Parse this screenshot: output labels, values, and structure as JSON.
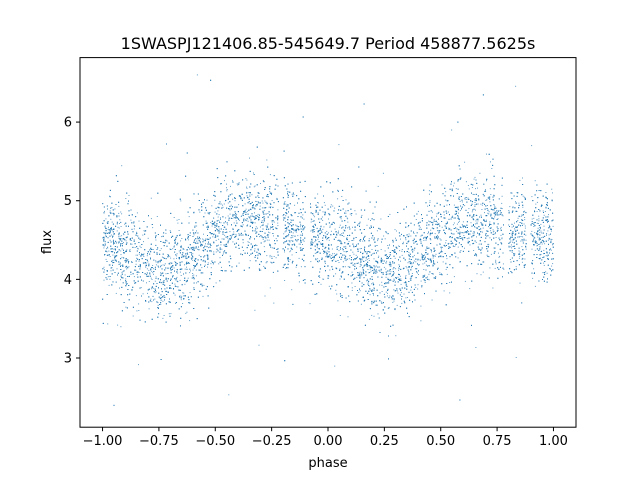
{
  "chart_data": {
    "type": "scatter",
    "title": "1SWASPJ121406.85-545649.7 Period 458877.5625s",
    "xlabel": "phase",
    "ylabel": "flux",
    "xlim": [
      -1.1,
      1.1
    ],
    "ylim": [
      2.12,
      6.82
    ],
    "xticks": [
      -1.0,
      -0.75,
      -0.5,
      -0.25,
      0.0,
      0.25,
      0.5,
      0.75,
      1.0
    ],
    "xtick_labels": [
      "−1.00",
      "−0.75",
      "−0.50",
      "−0.25",
      "0.00",
      "0.25",
      "0.50",
      "0.75",
      "1.00"
    ],
    "yticks": [
      3,
      4,
      5,
      6
    ],
    "ytick_labels": [
      "3",
      "4",
      "5",
      "6"
    ],
    "grid": false,
    "color": "#1f77b4",
    "series": [
      {
        "phase": [
          -1.0,
          -0.95,
          -0.9,
          -0.85,
          -0.8,
          -0.75,
          -0.7,
          -0.65,
          -0.6,
          -0.55,
          -0.5,
          -0.45,
          -0.4,
          -0.35,
          -0.3,
          -0.25,
          -0.2,
          -0.15,
          -0.1,
          -0.05,
          0.0,
          0.05,
          0.1,
          0.15,
          0.2,
          0.25,
          0.3,
          0.35,
          0.4,
          0.45,
          0.5,
          0.55,
          0.6,
          0.65,
          0.7,
          0.75,
          0.8,
          0.85,
          0.9,
          0.95,
          1.0
        ],
        "mean_flux": [
          4.5,
          4.45,
          4.35,
          4.25,
          4.15,
          4.1,
          4.12,
          4.2,
          4.3,
          4.42,
          4.55,
          4.65,
          4.72,
          4.75,
          4.72,
          4.65,
          4.6,
          4.58,
          4.55,
          4.52,
          4.5,
          4.45,
          4.35,
          4.25,
          4.15,
          4.1,
          4.12,
          4.2,
          4.3,
          4.42,
          4.55,
          4.65,
          4.72,
          4.75,
          4.72,
          4.65,
          4.6,
          4.58,
          4.55,
          4.52,
          4.5
        ],
        "scatter_std": 0.3,
        "phase_gaps": [
          [
            -0.22,
            -0.2
          ],
          [
            -0.1,
            -0.08
          ],
          [
            0.78,
            0.8
          ],
          [
            0.88,
            0.9
          ]
        ]
      }
    ]
  }
}
